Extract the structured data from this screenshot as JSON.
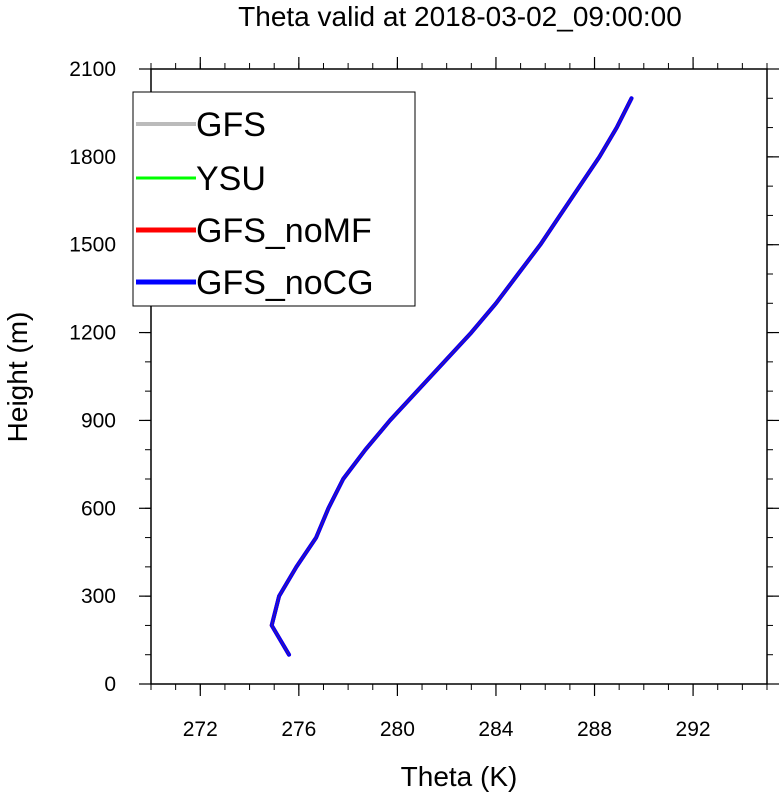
{
  "chart_data": {
    "type": "line",
    "title": "Theta valid at 2018-03-02_09:00:00",
    "xlabel": "Theta (K)",
    "ylabel": "Height (m)",
    "xlim": [
      270,
      295
    ],
    "ylim": [
      0,
      2100
    ],
    "x_ticks": [
      272,
      276,
      280,
      284,
      288,
      292
    ],
    "y_ticks": [
      0,
      300,
      600,
      900,
      1200,
      1500,
      1800,
      2100
    ],
    "x_tick_labels": [
      "272",
      "276",
      "280",
      "284",
      "288",
      "292"
    ],
    "y_tick_labels": [
      "0",
      "300",
      "600",
      "900",
      "1200",
      "1500",
      "1800",
      "2100"
    ],
    "grid": false,
    "legend_position": "top-left",
    "series": [
      {
        "name": "GFS",
        "color": "#bbbbbb",
        "stroke": 3,
        "points": [
          [
            275.6,
            100
          ],
          [
            274.9,
            200
          ],
          [
            275.2,
            300
          ],
          [
            275.9,
            400
          ],
          [
            276.7,
            500
          ],
          [
            277.2,
            600
          ],
          [
            277.8,
            700
          ],
          [
            278.7,
            800
          ],
          [
            279.7,
            900
          ],
          [
            280.8,
            1000
          ],
          [
            281.9,
            1100
          ],
          [
            283.0,
            1200
          ],
          [
            284.0,
            1300
          ],
          [
            284.9,
            1400
          ],
          [
            285.8,
            1500
          ],
          [
            286.6,
            1600
          ],
          [
            287.4,
            1700
          ],
          [
            288.2,
            1800
          ],
          [
            288.9,
            1900
          ],
          [
            289.5,
            2000
          ]
        ]
      },
      {
        "name": "YSU",
        "color": "#00ff00",
        "stroke": 2,
        "points": [
          [
            275.6,
            100
          ],
          [
            274.9,
            200
          ],
          [
            275.2,
            300
          ],
          [
            275.9,
            400
          ],
          [
            276.7,
            500
          ],
          [
            277.2,
            600
          ],
          [
            277.8,
            700
          ],
          [
            278.7,
            800
          ],
          [
            279.7,
            900
          ],
          [
            280.8,
            1000
          ],
          [
            281.9,
            1100
          ],
          [
            283.0,
            1200
          ],
          [
            284.0,
            1300
          ],
          [
            284.9,
            1400
          ],
          [
            285.8,
            1500
          ],
          [
            286.6,
            1600
          ],
          [
            287.4,
            1700
          ],
          [
            288.2,
            1800
          ],
          [
            288.9,
            1900
          ],
          [
            289.5,
            2000
          ]
        ]
      },
      {
        "name": "GFS_noMF",
        "color": "#ff0000",
        "stroke": 4,
        "points": [
          [
            275.6,
            100
          ],
          [
            274.9,
            200
          ],
          [
            275.2,
            300
          ],
          [
            275.9,
            400
          ],
          [
            276.7,
            500
          ],
          [
            277.2,
            600
          ],
          [
            277.8,
            700
          ],
          [
            278.7,
            800
          ],
          [
            279.7,
            900
          ],
          [
            280.8,
            1000
          ],
          [
            281.9,
            1100
          ],
          [
            283.0,
            1200
          ],
          [
            284.0,
            1300
          ],
          [
            284.9,
            1400
          ],
          [
            285.8,
            1500
          ],
          [
            286.6,
            1600
          ],
          [
            287.4,
            1700
          ],
          [
            288.2,
            1800
          ],
          [
            288.9,
            1900
          ],
          [
            289.5,
            2000
          ]
        ]
      },
      {
        "name": "GFS_noCG",
        "color": "#0000ff",
        "stroke": 4,
        "points": [
          [
            275.6,
            100
          ],
          [
            274.9,
            200
          ],
          [
            275.2,
            300
          ],
          [
            275.9,
            400
          ],
          [
            276.7,
            500
          ],
          [
            277.2,
            600
          ],
          [
            277.8,
            700
          ],
          [
            278.7,
            800
          ],
          [
            279.7,
            900
          ],
          [
            280.8,
            1000
          ],
          [
            281.9,
            1100
          ],
          [
            283.0,
            1200
          ],
          [
            284.0,
            1300
          ],
          [
            284.9,
            1400
          ],
          [
            285.8,
            1500
          ],
          [
            286.6,
            1600
          ],
          [
            287.4,
            1700
          ],
          [
            288.2,
            1800
          ],
          [
            288.9,
            1900
          ],
          [
            289.5,
            2000
          ]
        ]
      }
    ]
  }
}
